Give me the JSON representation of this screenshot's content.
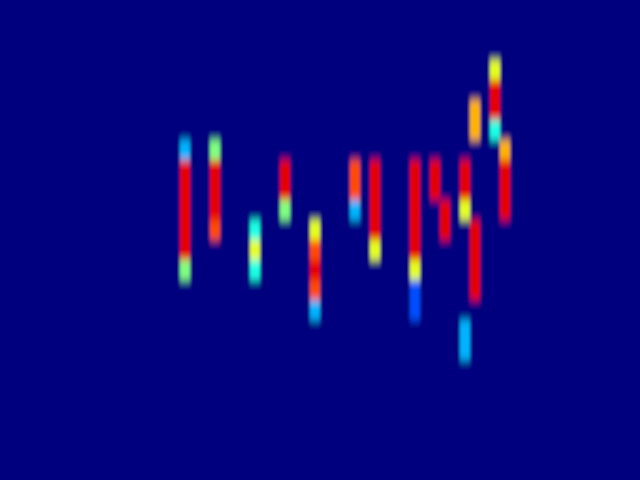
{
  "chart_data": {
    "type": "heatmap",
    "tick_labels": false,
    "color_range": [
      0,
      10
    ],
    "cells": [
      [
        0,
        0,
        0,
        0,
        0,
        0,
        0,
        0,
        0,
        0,
        0,
        0,
        0,
        0,
        0,
        0,
        0,
        0,
        0,
        0,
        0,
        0,
        0,
        0,
        0,
        0,
        0,
        0,
        0,
        0,
        0,
        0,
        0,
        0,
        0,
        0,
        0,
        0,
        0,
        0,
        0,
        0,
        0,
        0,
        0,
        0,
        0,
        0,
        0,
        0,
        0,
        0,
        0,
        0,
        0,
        0,
        0,
        0,
        0,
        0,
        0,
        0,
        0,
        0
      ],
      [
        0,
        0,
        0,
        0,
        0,
        0,
        0,
        0,
        0,
        0,
        0,
        0,
        0,
        0,
        0,
        0,
        0,
        0,
        0,
        0,
        0,
        0,
        0,
        0,
        0,
        0,
        0,
        0,
        0,
        0,
        0,
        0,
        0,
        0,
        0,
        0,
        0,
        0,
        0,
        0,
        0,
        0,
        0,
        0,
        0,
        0,
        0,
        0,
        0,
        0,
        0,
        0,
        0,
        0,
        0,
        0,
        0,
        0,
        0,
        0,
        0,
        0,
        0,
        0
      ],
      [
        0,
        0,
        0,
        0,
        0,
        0,
        0,
        0,
        0,
        0,
        0,
        0,
        0,
        0,
        0,
        0,
        0,
        0,
        0,
        0,
        0,
        0,
        0,
        0,
        0,
        0,
        0,
        0,
        0,
        0,
        0,
        0,
        0,
        0,
        0,
        0,
        0,
        0,
        0,
        0,
        0,
        0,
        0,
        0,
        0,
        0,
        0,
        0,
        0,
        0,
        0,
        0,
        0,
        0,
        0,
        0,
        0,
        0,
        0,
        0,
        0,
        0,
        0,
        0
      ],
      [
        0,
        0,
        0,
        0,
        0,
        0,
        0,
        0,
        0,
        0,
        0,
        0,
        0,
        0,
        0,
        0,
        0,
        0,
        0,
        0,
        0,
        0,
        0,
        0,
        0,
        0,
        0,
        0,
        0,
        0,
        0,
        0,
        0,
        0,
        0,
        0,
        0,
        0,
        0,
        0,
        0,
        0,
        0,
        0,
        0,
        0,
        0,
        0,
        0,
        6,
        0,
        0,
        0,
        0,
        0,
        0,
        0,
        0,
        0,
        0,
        0,
        0,
        0,
        0
      ],
      [
        0,
        0,
        0,
        0,
        0,
        0,
        0,
        0,
        0,
        0,
        0,
        0,
        0,
        0,
        0,
        0,
        0,
        0,
        0,
        0,
        0,
        0,
        0,
        0,
        0,
        0,
        0,
        0,
        0,
        0,
        0,
        0,
        0,
        0,
        0,
        0,
        0,
        0,
        0,
        0,
        0,
        0,
        0,
        0,
        0,
        0,
        0,
        0,
        0,
        9,
        0,
        0,
        0,
        0,
        0,
        0,
        0,
        0,
        0,
        0,
        0,
        0,
        0,
        0
      ],
      [
        0,
        0,
        0,
        0,
        0,
        0,
        0,
        0,
        0,
        0,
        0,
        0,
        0,
        0,
        0,
        0,
        0,
        0,
        0,
        0,
        0,
        0,
        0,
        0,
        0,
        0,
        0,
        0,
        0,
        0,
        0,
        0,
        0,
        0,
        0,
        0,
        0,
        0,
        0,
        0,
        0,
        0,
        0,
        0,
        0,
        0,
        0,
        7,
        0,
        9,
        0,
        0,
        0,
        0,
        0,
        0,
        0,
        0,
        0,
        0,
        0,
        0,
        0,
        0
      ],
      [
        0,
        0,
        0,
        0,
        0,
        0,
        0,
        0,
        0,
        0,
        0,
        0,
        0,
        0,
        0,
        0,
        0,
        0,
        0,
        0,
        0,
        0,
        0,
        0,
        0,
        0,
        0,
        0,
        0,
        0,
        0,
        0,
        0,
        0,
        0,
        0,
        0,
        0,
        0,
        0,
        0,
        0,
        0,
        0,
        0,
        0,
        0,
        7,
        0,
        4,
        0,
        0,
        0,
        0,
        0,
        0,
        0,
        0,
        0,
        0,
        0,
        0,
        0,
        0
      ],
      [
        0,
        0,
        0,
        0,
        0,
        0,
        0,
        0,
        0,
        0,
        0,
        0,
        0,
        0,
        0,
        0,
        0,
        0,
        3,
        0,
        0,
        5,
        0,
        0,
        0,
        0,
        0,
        0,
        0,
        0,
        0,
        0,
        0,
        0,
        0,
        0,
        0,
        0,
        0,
        0,
        0,
        0,
        0,
        0,
        0,
        0,
        0,
        0,
        0,
        0,
        7,
        0,
        0,
        0,
        0,
        0,
        0,
        0,
        0,
        0,
        0,
        0,
        0,
        0
      ],
      [
        0,
        0,
        0,
        0,
        0,
        0,
        0,
        0,
        0,
        0,
        0,
        0,
        0,
        0,
        0,
        0,
        0,
        0,
        9,
        0,
        0,
        9,
        0,
        0,
        0,
        0,
        0,
        0,
        9,
        0,
        0,
        0,
        0,
        0,
        0,
        8,
        0,
        9,
        0,
        0,
        0,
        9,
        0,
        9,
        0,
        0,
        9,
        0,
        0,
        0,
        9,
        0,
        0,
        0,
        0,
        0,
        0,
        0,
        0,
        0,
        0,
        0,
        0,
        0
      ],
      [
        0,
        0,
        0,
        0,
        0,
        0,
        0,
        0,
        0,
        0,
        0,
        0,
        0,
        0,
        0,
        0,
        0,
        0,
        9,
        0,
        0,
        9,
        0,
        0,
        0,
        0,
        0,
        0,
        9,
        0,
        0,
        0,
        0,
        0,
        0,
        8,
        0,
        9,
        0,
        0,
        0,
        9,
        0,
        9,
        0,
        0,
        9,
        0,
        0,
        0,
        9,
        0,
        0,
        0,
        0,
        0,
        0,
        0,
        0,
        0,
        0,
        0,
        0,
        0
      ],
      [
        0,
        0,
        0,
        0,
        0,
        0,
        0,
        0,
        0,
        0,
        0,
        0,
        0,
        0,
        0,
        0,
        0,
        0,
        9,
        0,
        0,
        9,
        0,
        0,
        0,
        0,
        0,
        0,
        5,
        0,
        0,
        0,
        0,
        0,
        0,
        3,
        0,
        9,
        0,
        0,
        0,
        9,
        0,
        0,
        9,
        0,
        6,
        0,
        0,
        0,
        9,
        0,
        0,
        0,
        0,
        0,
        0,
        0,
        0,
        0,
        0,
        0,
        0,
        0
      ],
      [
        0,
        0,
        0,
        0,
        0,
        0,
        0,
        0,
        0,
        0,
        0,
        0,
        0,
        0,
        0,
        0,
        0,
        0,
        9,
        0,
        0,
        8,
        0,
        0,
        0,
        4,
        0,
        0,
        0,
        0,
        0,
        6,
        0,
        0,
        0,
        0,
        0,
        9,
        0,
        0,
        0,
        9,
        0,
        0,
        9,
        0,
        0,
        9,
        0,
        0,
        0,
        0,
        0,
        0,
        0,
        0,
        0,
        0,
        0,
        0,
        0,
        0,
        0,
        0
      ],
      [
        0,
        0,
        0,
        0,
        0,
        0,
        0,
        0,
        0,
        0,
        0,
        0,
        0,
        0,
        0,
        0,
        0,
        0,
        9,
        0,
        0,
        0,
        0,
        0,
        0,
        6,
        0,
        0,
        0,
        0,
        0,
        8,
        0,
        0,
        0,
        0,
        0,
        6,
        0,
        0,
        0,
        9,
        0,
        0,
        0,
        0,
        0,
        9,
        0,
        0,
        0,
        0,
        0,
        0,
        0,
        0,
        0,
        0,
        0,
        0,
        0,
        0,
        0,
        0
      ],
      [
        0,
        0,
        0,
        0,
        0,
        0,
        0,
        0,
        0,
        0,
        0,
        0,
        0,
        0,
        0,
        0,
        0,
        0,
        5,
        0,
        0,
        0,
        0,
        0,
        0,
        4,
        0,
        0,
        0,
        0,
        0,
        9,
        0,
        0,
        0,
        0,
        0,
        0,
        0,
        0,
        0,
        6,
        0,
        0,
        0,
        0,
        0,
        9,
        0,
        0,
        0,
        0,
        0,
        0,
        0,
        0,
        0,
        0,
        0,
        0,
        0,
        0,
        0,
        0
      ],
      [
        0,
        0,
        0,
        0,
        0,
        0,
        0,
        0,
        0,
        0,
        0,
        0,
        0,
        0,
        0,
        0,
        0,
        0,
        0,
        0,
        0,
        0,
        0,
        0,
        0,
        0,
        0,
        0,
        0,
        0,
        0,
        8,
        0,
        0,
        0,
        0,
        0,
        0,
        0,
        0,
        0,
        2,
        0,
        0,
        0,
        0,
        0,
        9,
        0,
        0,
        0,
        0,
        0,
        0,
        0,
        0,
        0,
        0,
        0,
        0,
        0,
        0,
        0,
        0
      ],
      [
        0,
        0,
        0,
        0,
        0,
        0,
        0,
        0,
        0,
        0,
        0,
        0,
        0,
        0,
        0,
        0,
        0,
        0,
        0,
        0,
        0,
        0,
        0,
        0,
        0,
        0,
        0,
        0,
        0,
        0,
        0,
        3,
        0,
        0,
        0,
        0,
        0,
        0,
        0,
        0,
        0,
        2,
        0,
        0,
        0,
        0,
        0,
        0,
        0,
        0,
        0,
        0,
        0,
        0,
        0,
        0,
        0,
        0,
        0,
        0,
        0,
        0,
        0,
        0
      ],
      [
        0,
        0,
        0,
        0,
        0,
        0,
        0,
        0,
        0,
        0,
        0,
        0,
        0,
        0,
        0,
        0,
        0,
        0,
        0,
        0,
        0,
        0,
        0,
        0,
        0,
        0,
        0,
        0,
        0,
        0,
        0,
        0,
        0,
        0,
        0,
        0,
        0,
        0,
        0,
        0,
        0,
        0,
        0,
        0,
        0,
        0,
        3,
        0,
        0,
        0,
        0,
        0,
        0,
        0,
        0,
        0,
        0,
        0,
        0,
        0,
        0,
        0,
        0,
        0
      ],
      [
        0,
        0,
        0,
        0,
        0,
        0,
        0,
        0,
        0,
        0,
        0,
        0,
        0,
        0,
        0,
        0,
        0,
        0,
        0,
        0,
        0,
        0,
        0,
        0,
        0,
        0,
        0,
        0,
        0,
        0,
        0,
        0,
        0,
        0,
        0,
        0,
        0,
        0,
        0,
        0,
        0,
        0,
        0,
        0,
        0,
        0,
        3,
        0,
        0,
        0,
        0,
        0,
        0,
        0,
        0,
        0,
        0,
        0,
        0,
        0,
        0,
        0,
        0,
        0
      ],
      [
        0,
        0,
        0,
        0,
        0,
        0,
        0,
        0,
        0,
        0,
        0,
        0,
        0,
        0,
        0,
        0,
        0,
        0,
        0,
        0,
        0,
        0,
        0,
        0,
        0,
        0,
        0,
        0,
        0,
        0,
        0,
        0,
        0,
        0,
        0,
        0,
        0,
        0,
        0,
        0,
        0,
        0,
        0,
        0,
        0,
        0,
        0,
        0,
        0,
        0,
        0,
        0,
        0,
        0,
        0,
        0,
        0,
        0,
        0,
        0,
        0,
        0,
        0,
        0
      ],
      [
        0,
        0,
        0,
        0,
        0,
        0,
        0,
        0,
        0,
        0,
        0,
        0,
        0,
        0,
        0,
        0,
        0,
        0,
        0,
        0,
        0,
        0,
        0,
        0,
        0,
        0,
        0,
        0,
        0,
        0,
        0,
        0,
        0,
        0,
        0,
        0,
        0,
        0,
        0,
        0,
        0,
        0,
        0,
        0,
        0,
        0,
        0,
        0,
        0,
        0,
        0,
        0,
        0,
        0,
        0,
        0,
        0,
        0,
        0,
        0,
        0,
        0,
        0,
        0
      ],
      [
        0,
        0,
        0,
        0,
        0,
        0,
        0,
        0,
        0,
        0,
        0,
        0,
        0,
        0,
        0,
        0,
        0,
        0,
        0,
        0,
        0,
        0,
        0,
        0,
        0,
        0,
        0,
        0,
        0,
        0,
        0,
        0,
        0,
        0,
        0,
        0,
        0,
        0,
        0,
        0,
        0,
        0,
        0,
        0,
        0,
        0,
        0,
        0,
        0,
        0,
        0,
        0,
        0,
        0,
        0,
        0,
        0,
        0,
        0,
        0,
        0,
        0,
        0,
        0
      ],
      [
        0,
        0,
        0,
        0,
        0,
        0,
        0,
        0,
        0,
        0,
        0,
        0,
        0,
        0,
        0,
        0,
        0,
        0,
        0,
        0,
        0,
        0,
        0,
        0,
        0,
        0,
        0,
        0,
        0,
        0,
        0,
        0,
        0,
        0,
        0,
        0,
        0,
        0,
        0,
        0,
        0,
        0,
        0,
        0,
        0,
        0,
        0,
        0,
        0,
        0,
        0,
        0,
        0,
        0,
        0,
        0,
        0,
        0,
        0,
        0,
        0,
        0,
        0,
        0
      ],
      [
        0,
        0,
        0,
        0,
        0,
        0,
        0,
        0,
        0,
        0,
        0,
        0,
        0,
        0,
        0,
        0,
        0,
        0,
        0,
        0,
        0,
        0,
        0,
        0,
        0,
        0,
        0,
        0,
        0,
        0,
        0,
        0,
        0,
        0,
        0,
        0,
        0,
        0,
        0,
        0,
        0,
        0,
        0,
        0,
        0,
        0,
        0,
        0,
        0,
        0,
        0,
        0,
        0,
        0,
        0,
        0,
        0,
        0,
        0,
        0,
        0,
        0,
        0,
        0
      ],
      [
        0,
        0,
        0,
        0,
        0,
        0,
        0,
        0,
        0,
        0,
        0,
        0,
        0,
        0,
        0,
        0,
        0,
        0,
        0,
        0,
        0,
        0,
        0,
        0,
        0,
        0,
        0,
        0,
        0,
        0,
        0,
        0,
        0,
        0,
        0,
        0,
        0,
        0,
        0,
        0,
        0,
        0,
        0,
        0,
        0,
        0,
        0,
        0,
        0,
        0,
        0,
        0,
        0,
        0,
        0,
        0,
        0,
        0,
        0,
        0,
        0,
        0,
        0,
        0
      ]
    ]
  }
}
